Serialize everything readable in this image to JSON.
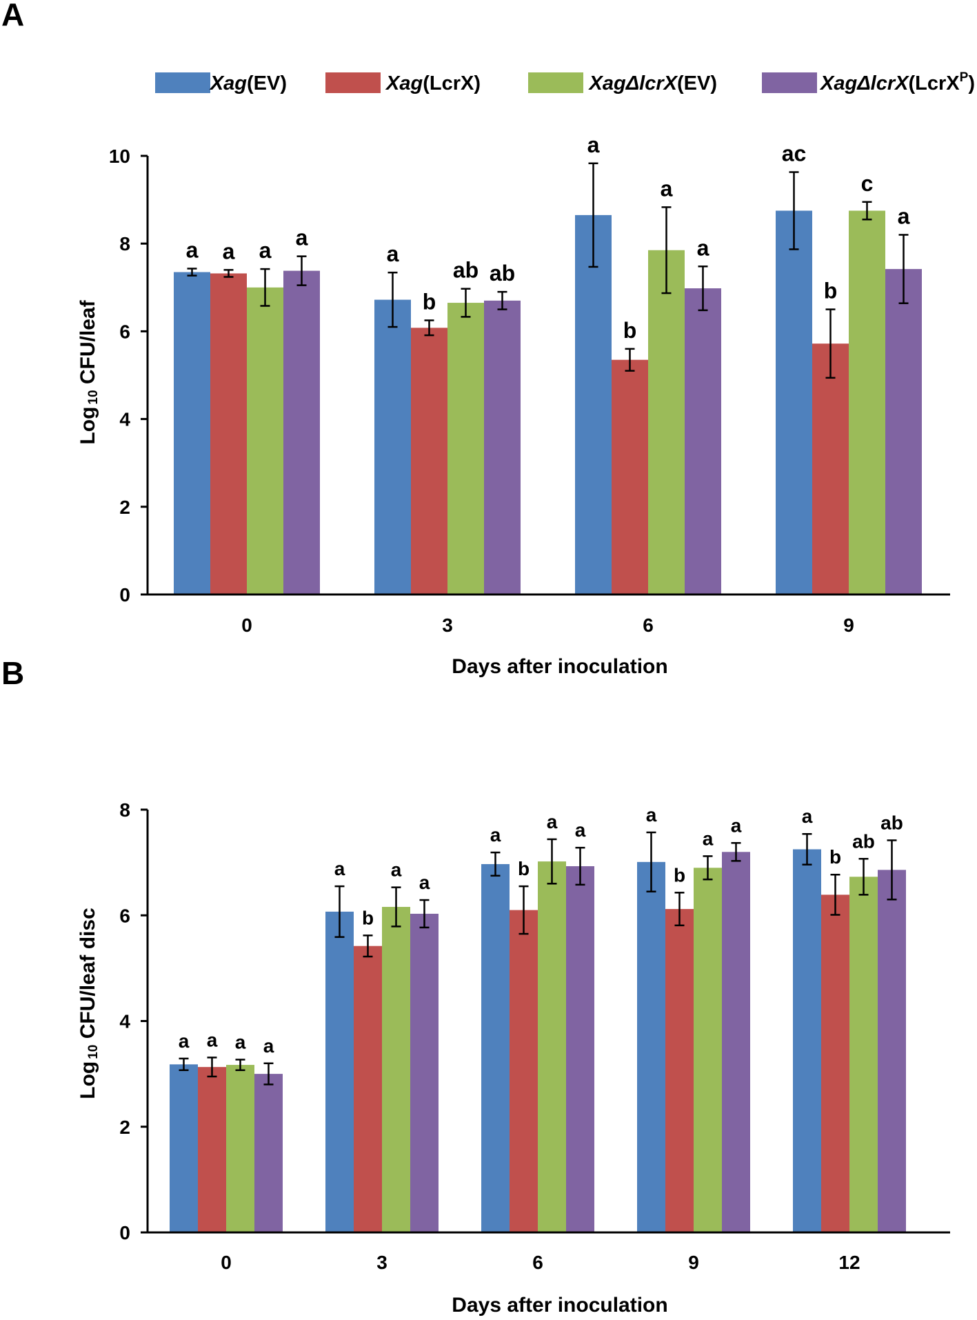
{
  "panel_labels": {
    "a": "A",
    "b": "B"
  },
  "legend": [
    {
      "name_italic": "Xag",
      "name_suffix": "(EV)",
      "sup": "",
      "close": "",
      "color": "#4f81bd"
    },
    {
      "name_italic": "Xag",
      "name_suffix": "(LcrX)",
      "sup": "",
      "close": "",
      "color": "#c0504d"
    },
    {
      "name_italic": "XagΔlcrX",
      "name_suffix": "(EV)",
      "sup": "",
      "close": "",
      "color": "#9bbb59"
    },
    {
      "name_italic": "XagΔlcrX",
      "name_suffix": "(LcrX",
      "sup": "P",
      "close": ")",
      "color": "#8064a2"
    }
  ],
  "chart_data": [
    {
      "type": "bar",
      "panel": "A",
      "title": "",
      "xlabel": "Days after inoculation",
      "ylabel_prefix": "Log",
      "ylabel_sub": "10",
      "ylabel_suffix": " CFU/leaf",
      "ylim": [
        0,
        10
      ],
      "yticks": [
        0,
        2,
        4,
        6,
        8,
        10
      ],
      "categories": [
        "0",
        "3",
        "6",
        "9"
      ],
      "series": [
        {
          "name": "Xag(EV)",
          "color": "#4f81bd",
          "values": [
            7.35,
            6.72,
            8.65,
            8.75
          ],
          "errors": [
            0.08,
            0.62,
            1.18,
            0.88
          ],
          "letters": [
            "a",
            "a",
            "a",
            "ac"
          ]
        },
        {
          "name": "Xag(LcrX)",
          "color": "#c0504d",
          "values": [
            7.32,
            6.08,
            5.35,
            5.72
          ],
          "errors": [
            0.08,
            0.17,
            0.25,
            0.78
          ],
          "letters": [
            "a",
            "b",
            "b",
            "b"
          ]
        },
        {
          "name": "XagΔlcrX(EV)",
          "color": "#9bbb59",
          "values": [
            7.0,
            6.65,
            7.85,
            8.75
          ],
          "errors": [
            0.42,
            0.32,
            0.98,
            0.2
          ],
          "letters": [
            "a",
            "ab",
            "a",
            "c"
          ]
        },
        {
          "name": "XagΔlcrX(LcrXP)",
          "color": "#8064a2",
          "values": [
            7.38,
            6.7,
            6.98,
            7.42
          ],
          "errors": [
            0.33,
            0.2,
            0.5,
            0.78
          ],
          "letters": [
            "a",
            "ab",
            "a",
            "a"
          ]
        }
      ]
    },
    {
      "type": "bar",
      "panel": "B",
      "title": "",
      "xlabel": "Days after inoculation",
      "ylabel_prefix": "Log",
      "ylabel_sub": "10",
      "ylabel_suffix": " CFU/leaf disc",
      "ylim": [
        0,
        8
      ],
      "yticks": [
        0,
        2,
        4,
        6,
        8
      ],
      "categories": [
        "0",
        "3",
        "6",
        "9",
        "12"
      ],
      "series": [
        {
          "name": "Xag(EV)",
          "color": "#4f81bd",
          "values": [
            3.18,
            6.07,
            6.97,
            7.01,
            7.25
          ],
          "errors": [
            0.11,
            0.48,
            0.22,
            0.56,
            0.29
          ],
          "letters": [
            "a",
            "a",
            "a",
            "a",
            "a"
          ]
        },
        {
          "name": "Xag(LcrX)",
          "color": "#c0504d",
          "values": [
            3.13,
            5.42,
            6.1,
            6.12,
            6.39
          ],
          "errors": [
            0.18,
            0.2,
            0.45,
            0.31,
            0.38
          ],
          "letters": [
            "a",
            "b",
            "b",
            "b",
            "b"
          ]
        },
        {
          "name": "XagΔlcrX(EV)",
          "color": "#9bbb59",
          "values": [
            3.17,
            6.16,
            7.02,
            6.9,
            6.73
          ],
          "errors": [
            0.1,
            0.37,
            0.42,
            0.22,
            0.34
          ],
          "letters": [
            "a",
            "a",
            "a",
            "a",
            "ab"
          ]
        },
        {
          "name": "XagΔlcrX(LcrXP)",
          "color": "#8064a2",
          "values": [
            3.0,
            6.03,
            6.93,
            7.2,
            6.86
          ],
          "errors": [
            0.2,
            0.26,
            0.35,
            0.17,
            0.56
          ],
          "letters": [
            "a",
            "a",
            "a",
            "a",
            "ab"
          ]
        }
      ]
    }
  ]
}
